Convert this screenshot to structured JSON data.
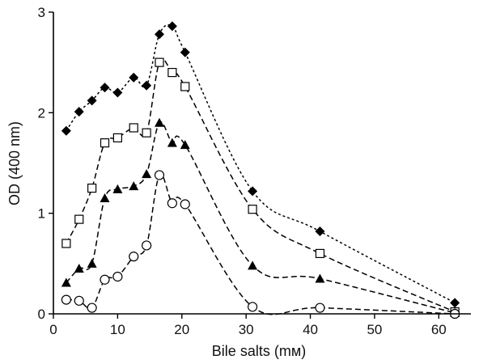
{
  "chart_data": {
    "type": "line",
    "xlabel": "Bile salts (mм)",
    "ylabel": "OD (400 nm)",
    "xlim": [
      0,
      65
    ],
    "ylim": [
      0,
      3
    ],
    "xticks": [
      0,
      10,
      20,
      30,
      40,
      50,
      60
    ],
    "yticks": [
      0,
      1,
      2,
      3
    ],
    "grid": false,
    "series": [
      {
        "marker": "diamond-filled",
        "dash": "dotted",
        "x": [
          2,
          4,
          6,
          8,
          10,
          12.5,
          14.5,
          16.5,
          18.5,
          20.5,
          31,
          41.5,
          62.5
        ],
        "y": [
          1.82,
          2.01,
          2.12,
          2.25,
          2.2,
          2.35,
          2.27,
          2.78,
          2.86,
          2.6,
          1.22,
          0.82,
          0.11
        ]
      },
      {
        "marker": "square-open",
        "dash": "dashed",
        "x": [
          2,
          4,
          6,
          8,
          10,
          12.5,
          14.5,
          16.5,
          18.5,
          20.5,
          31,
          41.5,
          62.5
        ],
        "y": [
          0.7,
          0.94,
          1.25,
          1.7,
          1.75,
          1.85,
          1.8,
          2.5,
          2.4,
          2.26,
          1.04,
          0.6,
          0.02
        ]
      },
      {
        "marker": "triangle-filled",
        "dash": "dashed",
        "x": [
          2,
          4,
          6,
          8,
          10,
          12.5,
          14.5,
          16.5,
          18.5,
          20.5,
          31,
          41.5,
          62.5
        ],
        "y": [
          0.31,
          0.45,
          0.5,
          1.15,
          1.24,
          1.27,
          1.39,
          1.9,
          1.7,
          1.68,
          0.48,
          0.35,
          0.01
        ]
      },
      {
        "marker": "circle-open",
        "dash": "dashed",
        "x": [
          2,
          4,
          6,
          8,
          10,
          12.5,
          14.5,
          16.5,
          18.5,
          20.5,
          31,
          41.5,
          62.5
        ],
        "y": [
          0.14,
          0.13,
          0.06,
          0.34,
          0.37,
          0.57,
          0.68,
          1.38,
          1.1,
          1.09,
          0.07,
          0.06,
          0.0
        ]
      }
    ]
  }
}
